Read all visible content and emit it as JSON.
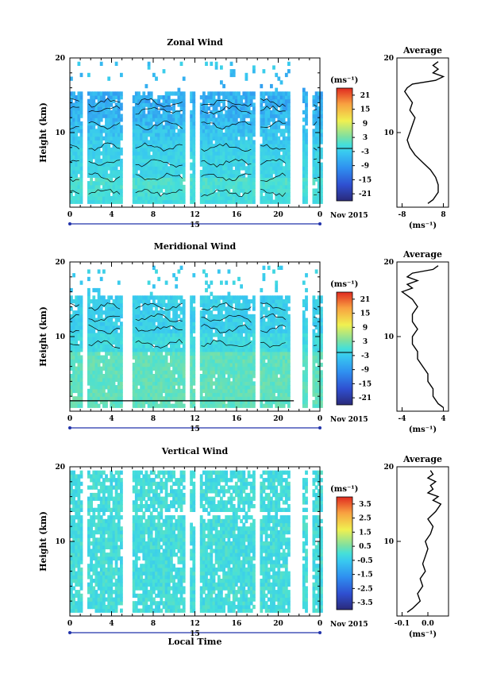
{
  "chart_data": [
    {
      "type": "heatmap",
      "title": "Zonal Wind",
      "ylabel": "Height (km)",
      "ylim": [
        0,
        20
      ],
      "y_ticks": [
        "10",
        "20"
      ],
      "x_ticks": [
        "0",
        "4",
        "8",
        "12",
        "16",
        "20",
        "0"
      ],
      "xlim": [
        0,
        24
      ],
      "date_ticks": [
        "15"
      ],
      "date_label": "Nov 2015",
      "data_gaps_hours": [
        [
          1.2,
          1.6
        ],
        [
          5.0,
          6.0
        ],
        [
          11.1,
          11.5
        ],
        [
          11.9,
          12.4
        ],
        [
          17.7,
          18.2
        ],
        [
          21.0,
          22.3
        ],
        [
          22.8,
          23.2
        ]
      ],
      "colorbar": {
        "unit": "(ms⁻¹)",
        "ticks": [
          "21",
          "15",
          "9",
          "3",
          "-3",
          "-9",
          "-15",
          "-21"
        ],
        "range": [
          -24,
          24
        ]
      },
      "profile": {
        "title": "Average",
        "xlabel": "(ms⁻¹)",
        "x_ticks": [
          "-8",
          "8"
        ],
        "xlim": [
          -10,
          10
        ],
        "y_ticks": [
          "10",
          "20"
        ],
        "height_km": [
          0.5,
          1,
          2,
          3,
          4,
          5,
          6,
          7,
          8,
          9,
          10,
          11,
          12,
          13,
          14,
          15,
          15.5,
          16,
          16.5,
          17,
          17.5,
          18,
          18.5,
          19,
          19.5
        ],
        "wind_ms": [
          2,
          4,
          6,
          6,
          5,
          3,
          0,
          -3,
          -5,
          -6,
          -5,
          -4,
          -3,
          -5,
          -4,
          -6,
          -7,
          -6,
          -4,
          5,
          8,
          4,
          6,
          4,
          6
        ]
      }
    },
    {
      "type": "heatmap",
      "title": "Meridional Wind",
      "ylabel": "Height (km)",
      "ylim": [
        0,
        20
      ],
      "y_ticks": [
        "10",
        "20"
      ],
      "x_ticks": [
        "0",
        "4",
        "8",
        "12",
        "16",
        "20",
        "0"
      ],
      "xlim": [
        0,
        24
      ],
      "date_ticks": [
        "15"
      ],
      "date_label": "Nov 2015",
      "data_gaps_hours": [
        [
          1.2,
          1.6
        ],
        [
          5.0,
          6.0
        ],
        [
          11.1,
          11.5
        ],
        [
          11.9,
          12.4
        ],
        [
          17.7,
          18.2
        ],
        [
          21.0,
          22.3
        ],
        [
          22.8,
          23.2
        ]
      ],
      "colorbar": {
        "unit": "(ms⁻¹)",
        "ticks": [
          "21",
          "15",
          "9",
          "3",
          "-3",
          "-9",
          "-15",
          "-21"
        ],
        "range": [
          -24,
          24
        ]
      },
      "profile": {
        "title": "Average",
        "xlabel": "(ms⁻¹)",
        "x_ticks": [
          "-4",
          "4"
        ],
        "xlim": [
          -5,
          5
        ],
        "y_ticks": [
          "10",
          "20"
        ],
        "height_km": [
          0.5,
          1,
          2,
          3,
          4,
          5,
          6,
          7,
          8,
          9,
          10,
          11,
          12,
          13,
          14,
          15,
          15.5,
          16,
          16.5,
          17,
          17.5,
          18,
          18.5,
          19,
          19.5
        ],
        "wind_ms": [
          4,
          3,
          2,
          2,
          1,
          1,
          0,
          -1,
          -1,
          -2,
          -2,
          -1,
          -2,
          -2,
          -1,
          -2,
          -3,
          -4,
          -2,
          -3,
          -1,
          -3,
          -2,
          2,
          3
        ]
      }
    },
    {
      "type": "heatmap",
      "title": "Vertical Wind",
      "ylabel": "Height (km)",
      "xlabel": "Local Time",
      "ylim": [
        0,
        20
      ],
      "y_ticks": [
        "10",
        "20"
      ],
      "x_ticks": [
        "0",
        "4",
        "8",
        "12",
        "16",
        "20",
        "0"
      ],
      "xlim": [
        0,
        24
      ],
      "date_ticks": [
        "15"
      ],
      "date_label": "Nov 2015",
      "data_gaps_hours": [
        [
          1.2,
          1.6
        ],
        [
          5.0,
          6.0
        ],
        [
          11.1,
          11.5
        ],
        [
          11.9,
          12.4
        ],
        [
          17.7,
          18.2
        ],
        [
          21.0,
          22.3
        ],
        [
          22.8,
          23.2
        ]
      ],
      "colorbar": {
        "unit": "(ms⁻¹)",
        "ticks": [
          "3.5",
          "2.5",
          "1.5",
          "0.5",
          "-0.5",
          "-1.5",
          "-2.5",
          "-3.5"
        ],
        "range": [
          -4,
          4
        ]
      },
      "profile": {
        "title": "Average",
        "xlabel": "(ms⁻¹)",
        "x_ticks": [
          "-0.1",
          "0.0"
        ],
        "xlim": [
          -0.12,
          0.08
        ],
        "y_ticks": [
          "10",
          "20"
        ],
        "height_km": [
          0.5,
          1,
          2,
          3,
          4,
          5,
          6,
          7,
          8,
          9,
          10,
          11,
          12,
          13,
          14,
          15,
          15.5,
          16,
          16.5,
          17,
          17.5,
          18,
          18.5,
          19,
          19.5
        ],
        "wind_ms": [
          -0.08,
          -0.06,
          -0.03,
          -0.04,
          -0.02,
          -0.03,
          -0.01,
          -0.02,
          -0.01,
          0.0,
          -0.01,
          0.01,
          0.02,
          0.0,
          0.03,
          0.05,
          0.02,
          0.04,
          0.0,
          0.02,
          0.01,
          0.03,
          0.0,
          0.02,
          0.01
        ]
      }
    }
  ]
}
